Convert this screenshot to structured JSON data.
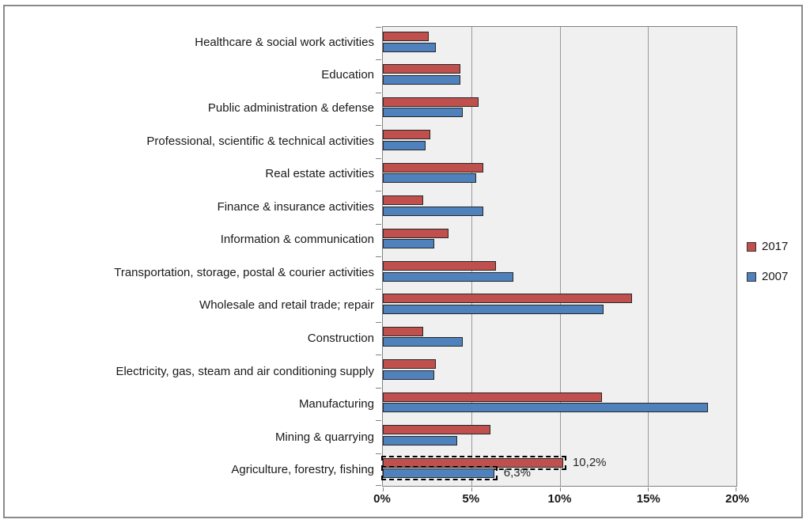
{
  "chart_data": {
    "type": "bar",
    "orientation": "horizontal",
    "title": "",
    "xlabel": "",
    "ylabel": "",
    "categories": [
      "Healthcare & social work activities",
      "Education",
      "Public administration & defense",
      "Professional, scientific & technical activities",
      "Real estate activities",
      "Finance & insurance activities",
      "Information & communication",
      "Transportation, storage, postal & courier activities",
      "Wholesale and retail trade; repair",
      "Construction",
      "Electricity, gas, steam and air conditioning supply",
      "Manufacturing",
      "Mining & quarrying",
      "Agriculture, forestry, fishing"
    ],
    "series": [
      {
        "name": "2017",
        "color": "#C0504D",
        "values": [
          2.6,
          4.4,
          5.4,
          2.7,
          5.7,
          2.3,
          3.7,
          6.4,
          14.1,
          2.3,
          3.0,
          12.4,
          6.1,
          10.2
        ]
      },
      {
        "name": "2007",
        "color": "#4F81BD",
        "values": [
          3.0,
          4.4,
          4.5,
          2.4,
          5.3,
          5.7,
          2.9,
          7.4,
          12.5,
          4.5,
          2.9,
          18.4,
          4.2,
          6.3
        ]
      }
    ],
    "xlim": [
      0,
      20
    ],
    "x_tick_values": [
      0,
      5,
      10,
      15,
      20
    ],
    "x_tick_labels": [
      "0%",
      "5%",
      "10%",
      "15%",
      "20%"
    ],
    "grid": true,
    "gridline_color": "#999999",
    "plot_background": "#F0F0F0",
    "bar_border_color": "#262626",
    "legend_position": "right",
    "highlight": {
      "category": "Agriculture, forestry, fishing",
      "style": "dashed-outline",
      "labels": [
        {
          "series": "2017",
          "text": "10,2%"
        },
        {
          "series": "2007",
          "text": "6,3%"
        }
      ]
    }
  }
}
